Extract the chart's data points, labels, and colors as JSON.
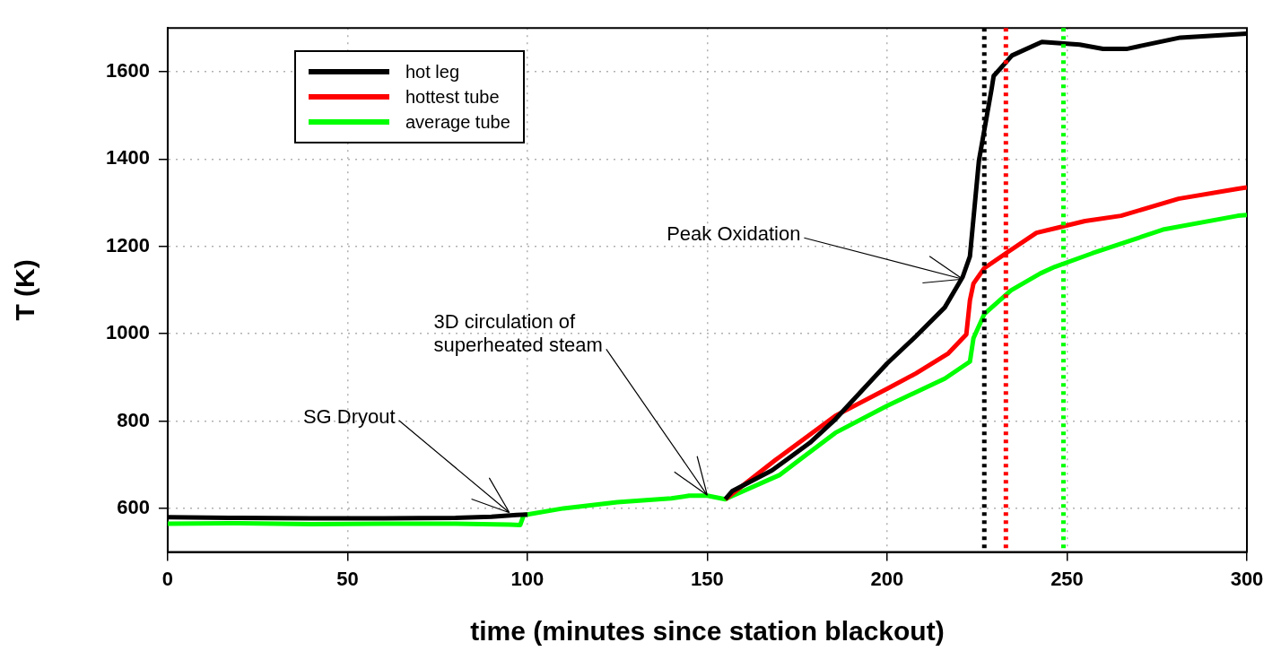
{
  "chart_data": {
    "type": "line",
    "xlabel": "time (minutes since station blackout)",
    "ylabel": "T (K)",
    "xlim": [
      0,
      300
    ],
    "xticks": [
      0,
      50,
      100,
      150,
      200,
      250,
      300
    ],
    "ylim": [
      500,
      1700
    ],
    "yticks": [
      600,
      800,
      1000,
      1200,
      1400,
      1600
    ],
    "grid": true,
    "legend": "top left",
    "marker": "none",
    "line_style": "solid",
    "series": [
      {
        "name": "hot leg",
        "color": "#000000",
        "x": [
          0,
          20,
          40,
          60,
          80,
          90,
          97,
          100,
          110,
          125,
          140,
          145,
          150,
          155,
          157,
          168,
          178.5,
          185.6,
          200,
          208,
          216,
          221,
          223,
          225.5,
          229,
          229.6,
          234.7,
          243,
          253.5,
          260,
          266.5,
          281.5,
          300
        ],
        "values": [
          580,
          578,
          577,
          577,
          578,
          581,
          585,
          586,
          null,
          null,
          null,
          null,
          null,
          621,
          640,
          687,
          750,
          804,
          932,
          994,
          1060,
          1130,
          1177,
          1396,
          1559,
          1590,
          1637,
          1668,
          1662,
          1652,
          1652,
          1678,
          1687
        ]
      },
      {
        "name": "hottest tube",
        "color": "#ff0000",
        "x": [
          155,
          169,
          185.6,
          200,
          208,
          217,
          222,
          223,
          224,
          227,
          233,
          241.5,
          247.6,
          255,
          265,
          281,
          297.5,
          300
        ],
        "values": [
          621,
          711,
          812,
          874,
          909,
          955,
          998,
          1076,
          1115,
          1150,
          1184,
          1231,
          1243,
          1258,
          1270,
          1309,
          1332,
          1335
        ]
      },
      {
        "name": "average tube",
        "color": "#00ff00",
        "x": [
          0,
          20,
          40,
          60,
          80,
          95,
          98,
          99,
          100,
          110,
          125,
          140,
          145,
          150,
          155,
          156,
          170,
          185.6,
          200,
          216,
          223,
          224,
          227,
          234.4,
          242.6,
          246.6,
          257,
          277,
          297.5,
          300
        ],
        "values": [
          565,
          566,
          564,
          565,
          565,
          563,
          562,
          585,
          586,
          600,
          614,
          623,
          629,
          629,
          621,
          625,
          676,
          773,
          835,
          897,
          936,
          990,
          1045,
          1099,
          1138,
          1153,
          1184,
          1239,
          1270,
          1272
        ]
      }
    ],
    "ref_lines": [
      {
        "axis": "x",
        "value": 227,
        "color": "#000000",
        "line_style": "dotted"
      },
      {
        "axis": "x",
        "value": 233,
        "color": "#ff0000",
        "line_style": "dotted"
      },
      {
        "axis": "x",
        "value": 249,
        "color": "#00ff00",
        "line_style": "dotted"
      }
    ],
    "annotations": [
      {
        "text": "SG Dryout",
        "x": 95,
        "y": 590
      },
      {
        "text": "3D circulation of\nsuperheated steam",
        "x": 150,
        "y": 630
      },
      {
        "text": "Peak Oxidation",
        "x": 221,
        "y": 1125
      }
    ]
  }
}
